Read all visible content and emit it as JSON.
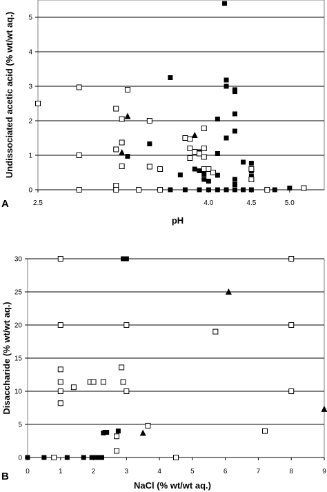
{
  "chart_data": [
    {
      "panel_label": "A",
      "type": "scatter",
      "xlabel": "pH",
      "ylabel": "Undissociated acetic acid (% wt/wt aq.)",
      "x_scale": "log",
      "xlim": [
        2.5,
        5.5
      ],
      "ylim": [
        0,
        5.5
      ],
      "x_ticks": [
        "2.5",
        "4.0",
        "4.5",
        "5.0"
      ],
      "x_tick_values": [
        2.5,
        4.0,
        4.5,
        5.0
      ],
      "y_ticks": [
        "0",
        "1",
        "2",
        "3",
        "4",
        "5"
      ],
      "y_tick_values": [
        0,
        1,
        2,
        3,
        4,
        5
      ],
      "grid": "horizontal",
      "series": [
        {
          "marker": "filled-square",
          "color": "#000000",
          "points": [
            [
              4.18,
              5.4
            ],
            [
              3.6,
              3.25
            ],
            [
              4.2,
              3.18
            ],
            [
              4.2,
              3.0
            ],
            [
              4.3,
              2.9
            ],
            [
              4.3,
              2.85
            ],
            [
              4.3,
              2.2
            ],
            [
              4.1,
              2.05
            ],
            [
              4.3,
              1.7
            ],
            [
              4.2,
              1.5
            ],
            [
              3.4,
              1.33
            ],
            [
              3.9,
              1.1
            ],
            [
              4.1,
              1.05
            ],
            [
              3.2,
              0.97
            ],
            [
              3.85,
              0.6
            ],
            [
              3.9,
              0.55
            ],
            [
              3.95,
              0.45
            ],
            [
              4.1,
              0.42
            ],
            [
              3.7,
              0.43
            ],
            [
              4.4,
              0.8
            ],
            [
              4.5,
              0.77
            ],
            [
              4.5,
              0.55
            ],
            [
              4.5,
              0.4
            ],
            [
              4.3,
              0.3
            ],
            [
              4.3,
              0.15
            ],
            [
              3.95,
              0.3
            ],
            [
              4.0,
              0.25
            ],
            [
              3.6,
              0.0
            ],
            [
              3.75,
              0.0
            ],
            [
              3.9,
              0.0
            ],
            [
              4.0,
              0.0
            ],
            [
              4.1,
              0.0
            ],
            [
              4.2,
              0.0
            ],
            [
              4.3,
              0.0
            ],
            [
              4.4,
              0.0
            ],
            [
              4.5,
              0.0
            ],
            [
              4.8,
              0.0
            ],
            [
              5.0,
              0.05
            ]
          ]
        },
        {
          "marker": "open-square",
          "color": "#000000",
          "points": [
            [
              2.5,
              2.5
            ],
            [
              2.8,
              2.97
            ],
            [
              3.2,
              2.9
            ],
            [
              3.1,
              2.35
            ],
            [
              3.15,
              2.05
            ],
            [
              3.4,
              2.0
            ],
            [
              3.15,
              1.37
            ],
            [
              3.1,
              1.17
            ],
            [
              2.8,
              1.0
            ],
            [
              3.15,
              0.68
            ],
            [
              3.4,
              0.67
            ],
            [
              3.5,
              0.6
            ],
            [
              3.75,
              1.5
            ],
            [
              3.8,
              1.47
            ],
            [
              3.8,
              1.2
            ],
            [
              3.85,
              1.1
            ],
            [
              3.9,
              1.05
            ],
            [
              3.8,
              0.92
            ],
            [
              3.95,
              1.78
            ],
            [
              3.95,
              1.2
            ],
            [
              3.95,
              0.95
            ],
            [
              3.95,
              0.6
            ],
            [
              4.0,
              0.6
            ],
            [
              4.05,
              0.5
            ],
            [
              4.5,
              0.6
            ],
            [
              4.5,
              0.3
            ],
            [
              3.1,
              0.12
            ],
            [
              2.8,
              0.0
            ],
            [
              3.1,
              0.0
            ],
            [
              3.3,
              0.0
            ],
            [
              3.5,
              0.0
            ],
            [
              4.7,
              0.0
            ],
            [
              5.2,
              0.05
            ]
          ]
        },
        {
          "marker": "filled-triangle",
          "color": "#000000",
          "points": [
            [
              3.2,
              2.13
            ],
            [
              3.15,
              1.08
            ],
            [
              3.85,
              1.58
            ]
          ]
        }
      ]
    },
    {
      "panel_label": "B",
      "type": "scatter",
      "xlabel": "NaCl (% wt/wt aq.)",
      "ylabel": "Disaccharide (% wt/wt aq.)",
      "xlim": [
        0,
        9
      ],
      "ylim": [
        0,
        30
      ],
      "x_ticks": [
        "0",
        "1",
        "2",
        "3",
        "4",
        "5",
        "6",
        "7",
        "8",
        "9"
      ],
      "x_tick_values": [
        0,
        1,
        2,
        3,
        4,
        5,
        6,
        7,
        8,
        9
      ],
      "y_ticks": [
        "0",
        "5",
        "10",
        "15",
        "20",
        "25",
        "30"
      ],
      "y_tick_values": [
        0,
        5,
        10,
        15,
        20,
        25,
        30
      ],
      "grid": "horizontal",
      "series": [
        {
          "marker": "filled-square",
          "color": "#000000",
          "points": [
            [
              0,
              0
            ],
            [
              0.5,
              0
            ],
            [
              1.2,
              0
            ],
            [
              1.7,
              0
            ],
            [
              1.95,
              0
            ],
            [
              2.05,
              0
            ],
            [
              2.1,
              0
            ],
            [
              2.2,
              0
            ],
            [
              2.25,
              0
            ],
            [
              2.3,
              3.7
            ],
            [
              2.35,
              3.8
            ],
            [
              2.4,
              3.8
            ],
            [
              2.75,
              4.0
            ],
            [
              2.9,
              30
            ],
            [
              3.0,
              30
            ]
          ]
        },
        {
          "marker": "open-square",
          "color": "#000000",
          "points": [
            [
              1.0,
              30
            ],
            [
              1.0,
              20
            ],
            [
              1.0,
              13.3
            ],
            [
              1.0,
              11.4
            ],
            [
              1.0,
              10.0
            ],
            [
              1.0,
              8.2
            ],
            [
              1.4,
              10.6
            ],
            [
              1.9,
              11.4
            ],
            [
              2.0,
              11.4
            ],
            [
              2.3,
              11.4
            ],
            [
              2.85,
              13.6
            ],
            [
              2.9,
              11.4
            ],
            [
              3.0,
              10.0
            ],
            [
              3.0,
              20
            ],
            [
              2.7,
              3.2
            ],
            [
              2.7,
              1.0
            ],
            [
              3.65,
              4.8
            ],
            [
              5.7,
              19.0
            ],
            [
              7.2,
              4.0
            ],
            [
              8.0,
              30
            ],
            [
              8.0,
              20
            ],
            [
              8.0,
              10
            ],
            [
              0.8,
              0
            ],
            [
              4.5,
              0
            ]
          ]
        },
        {
          "marker": "filled-triangle",
          "color": "#000000",
          "points": [
            [
              6.1,
              25
            ],
            [
              3.5,
              3.7
            ],
            [
              9.0,
              7.3
            ]
          ]
        }
      ]
    }
  ]
}
